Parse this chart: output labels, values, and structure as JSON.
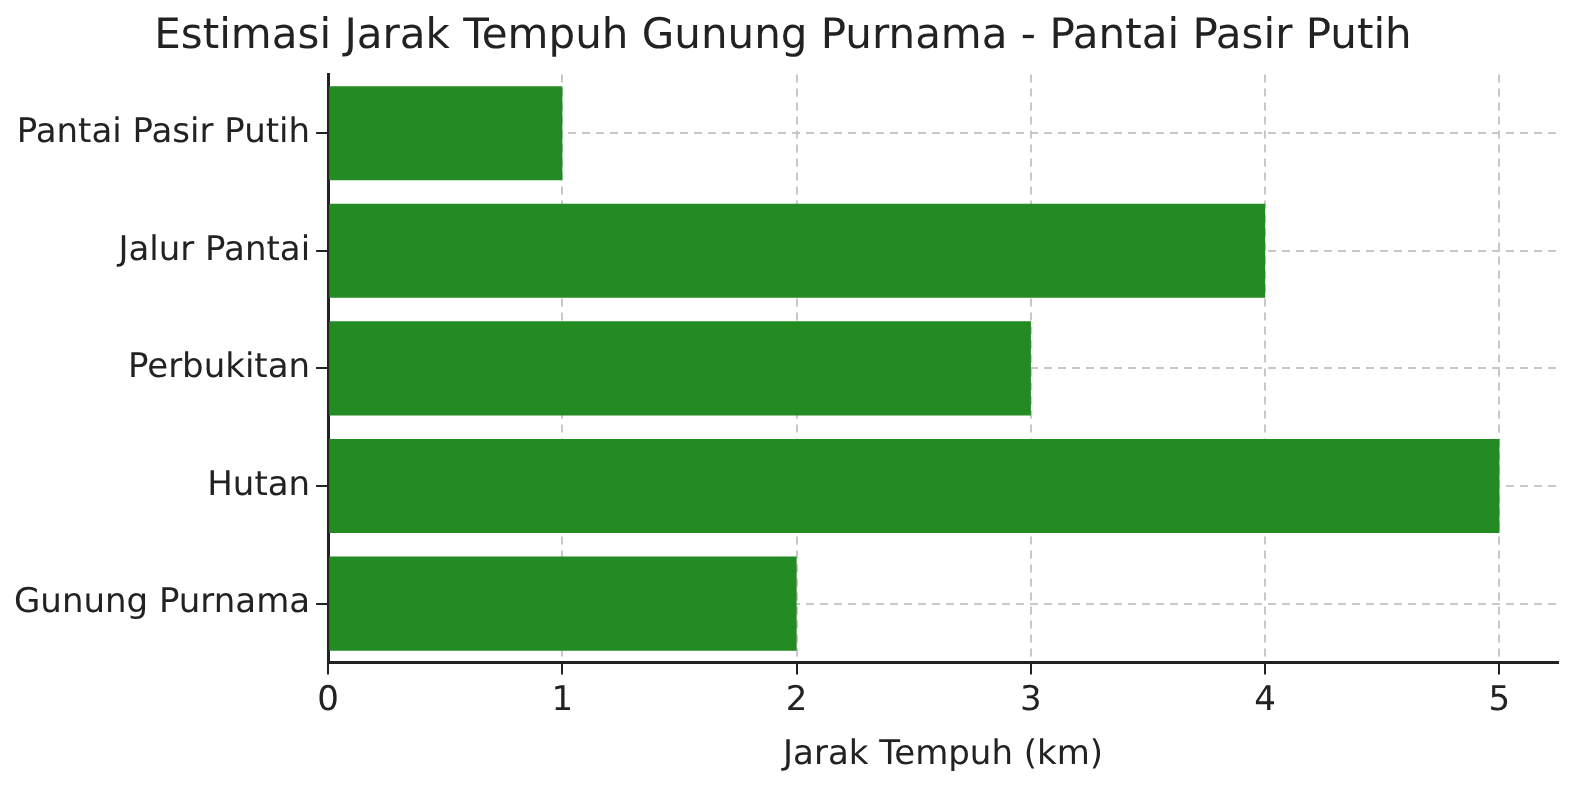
{
  "chart_data": {
    "type": "bar",
    "orientation": "horizontal",
    "title": "Estimasi Jarak Tempuh Gunung Purnama - Pantai Pasir Putih",
    "xlabel": "Jarak Tempuh (km)",
    "categories": [
      "Pantai Pasir Putih",
      "Jalur Pantai",
      "Perbukitan",
      "Hutan",
      "Gunung Purnama"
    ],
    "values": [
      1,
      4,
      3,
      5,
      2
    ],
    "color": "#228b22",
    "xlim": [
      0,
      5.25
    ],
    "xticks": [
      0,
      1,
      2,
      3,
      4,
      5
    ],
    "grid": true,
    "legend": false
  }
}
